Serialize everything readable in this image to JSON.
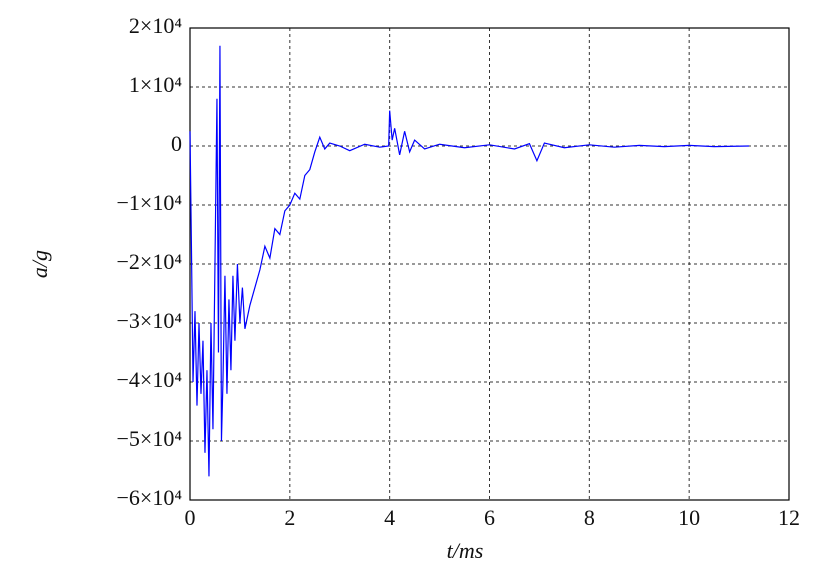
{
  "chart_data": {
    "type": "line",
    "x_label": "t/ms",
    "y_label": "a/g",
    "x": [
      0,
      0.03,
      0.06,
      0.1,
      0.14,
      0.18,
      0.22,
      0.26,
      0.3,
      0.34,
      0.38,
      0.42,
      0.46,
      0.5,
      0.54,
      0.57,
      0.6,
      0.63,
      0.66,
      0.7,
      0.74,
      0.78,
      0.82,
      0.86,
      0.9,
      0.95,
      1.0,
      1.05,
      1.1,
      1.2,
      1.3,
      1.4,
      1.5,
      1.6,
      1.7,
      1.8,
      1.9,
      2.0,
      2.1,
      2.2,
      2.3,
      2.4,
      2.5,
      2.6,
      2.7,
      2.8,
      3.0,
      3.2,
      3.5,
      3.8,
      3.98,
      4.0,
      4.05,
      4.1,
      4.2,
      4.3,
      4.4,
      4.5,
      4.7,
      5.0,
      5.5,
      6.0,
      6.5,
      6.8,
      6.95,
      7.1,
      7.5,
      8.0,
      8.5,
      9.0,
      9.5,
      10.0,
      10.5,
      11.2
    ],
    "values": [
      2500,
      -18000,
      -40000,
      -28000,
      -44000,
      -30000,
      -42000,
      -33000,
      -52000,
      -38000,
      -56000,
      -30000,
      -48000,
      -20000,
      8000,
      -35000,
      17000,
      -50000,
      -40000,
      -22000,
      -42000,
      -26000,
      -38000,
      -22000,
      -33000,
      -20000,
      -30000,
      -24000,
      -31000,
      -27000,
      -24000,
      -21000,
      -17000,
      -19000,
      -14000,
      -15000,
      -11000,
      -10000,
      -8000,
      -9000,
      -5000,
      -4000,
      -1000,
      1500,
      -500,
      500,
      0,
      -800,
      300,
      -200,
      0,
      6000,
      1000,
      3000,
      -1500,
      2500,
      -1000,
      1000,
      -500,
      300,
      -300,
      200,
      -500,
      400,
      -2500,
      500,
      -300,
      200,
      -200,
      100,
      -100,
      100,
      -100,
      0
    ],
    "color": "#0000ff",
    "xlim": [
      0,
      12
    ],
    "xticks": [
      0,
      2,
      4,
      6,
      8,
      10,
      12
    ],
    "ylim": [
      -60000,
      20000
    ],
    "yticks": [
      {
        "value": -60000,
        "label": "−6×10⁴"
      },
      {
        "value": -50000,
        "label": "−5×10⁴"
      },
      {
        "value": -40000,
        "label": "−4×10⁴"
      },
      {
        "value": -30000,
        "label": "−3×10⁴"
      },
      {
        "value": -20000,
        "label": "−2×10⁴"
      },
      {
        "value": -10000,
        "label": "−1×10⁴"
      },
      0,
      {
        "value": 10000,
        "label": "1×10⁴"
      },
      {
        "value": 20000,
        "label": "2×10⁴"
      }
    ],
    "grid": true
  }
}
